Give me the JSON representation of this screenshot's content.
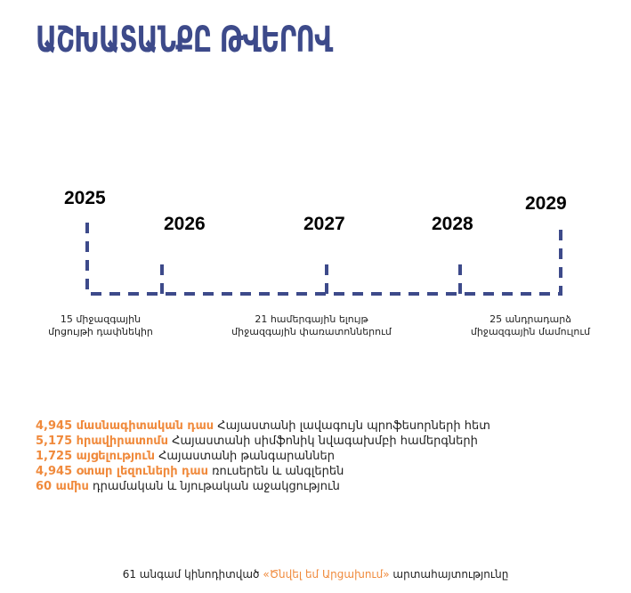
{
  "title": "ԱՇԽԱՏԱՆՔԸ ԹՎԵՐՈՎ",
  "timeline": {
    "years": [
      "2025",
      "2026",
      "2027",
      "2028",
      "2029"
    ],
    "line_color": "#3d4a8a",
    "captions": [
      {
        "line1": "15 միջազգային",
        "line2": "մրցույթի դափնեկիր"
      },
      {
        "line1": "21 համերգային ելույթ",
        "line2": "միջազգային փառատոններում"
      },
      {
        "line1": "25 անդրադարձ",
        "line2": "միջազգային մամուլում"
      }
    ]
  },
  "stats": [
    {
      "highlight": "4,945 մասնագիտական դաս",
      "text": "Հայաստանի լավագույն պրոֆեսորների հետ"
    },
    {
      "highlight": "5,175 հրավիրատոմս",
      "text": "Հայաստանի սիմֆոնիկ նվագախմբի համերգների"
    },
    {
      "highlight": "1,725 այցելություն",
      "text": "Հայաստանի թանգարաններ"
    },
    {
      "highlight": "4,945 օտար լեզուների դաս",
      "text": "ռուսերեն և անգլերեն"
    },
    {
      "highlight": "60 ամիս",
      "text": "դրամական և նյութական աջակցություն"
    }
  ],
  "accent_color": "#f08a3c",
  "footer": {
    "before": "61 անգամ կինոդիտված",
    "highlight": "«Ծնվել եմ Արցախում»",
    "after": "արտահայտությունը"
  }
}
